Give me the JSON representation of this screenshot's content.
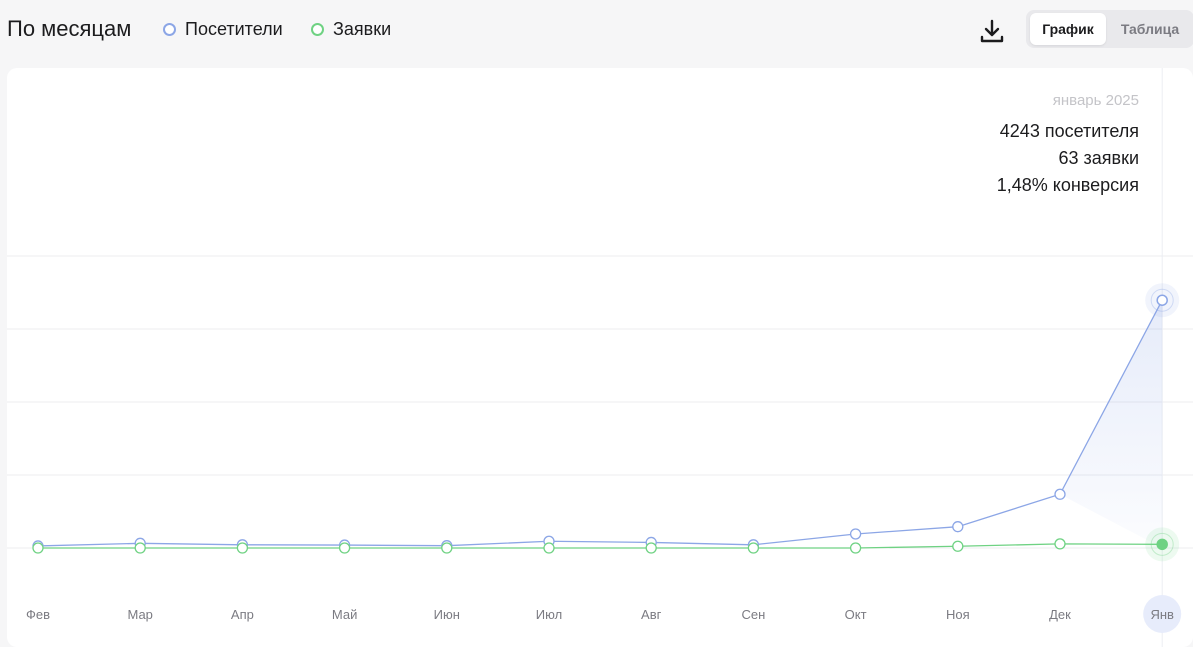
{
  "header": {
    "title": "По месяцам",
    "legend": [
      {
        "label": "Посетители",
        "color": "#8ca6e6"
      },
      {
        "label": "Заявки",
        "color": "#6fd283"
      }
    ],
    "download_icon": "download-icon",
    "view_toggle": {
      "active": "График",
      "inactive": "Таблица"
    }
  },
  "tooltip": {
    "month": "январь 2025",
    "visitors": "4243 посетителя",
    "requests": "63 заявки",
    "conversion": "1,48% конверсия"
  },
  "chart_data": {
    "type": "line",
    "categories": [
      "Фев",
      "Мар",
      "Апр",
      "Май",
      "Июн",
      "Июл",
      "Авг",
      "Сен",
      "Окт",
      "Ноя",
      "Дек",
      "Янв"
    ],
    "series": [
      {
        "name": "Посетители",
        "color": "#8ca6e6",
        "values": [
          35,
          80,
          55,
          50,
          40,
          115,
          95,
          55,
          240,
          365,
          920,
          4243
        ]
      },
      {
        "name": "Заявки",
        "color": "#6fd283",
        "values": [
          0,
          0,
          0,
          0,
          0,
          0,
          0,
          0,
          0,
          30,
          70,
          63
        ]
      }
    ],
    "highlighted_category": "Янв",
    "grid": true
  }
}
